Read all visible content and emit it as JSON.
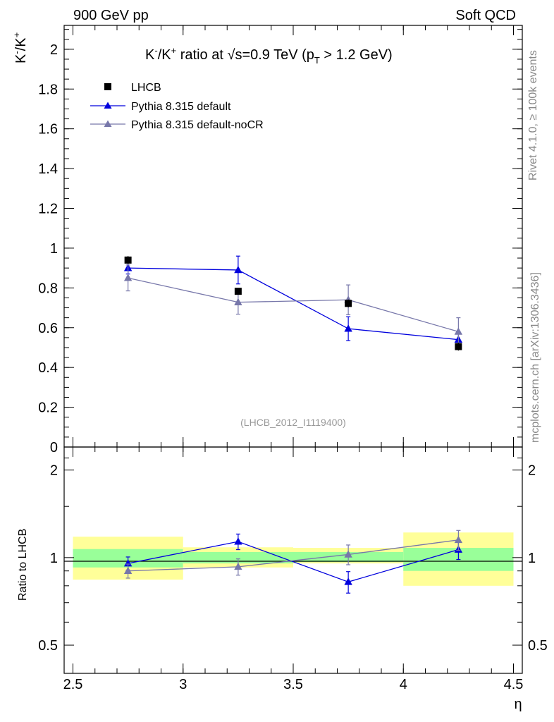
{
  "header": {
    "left": "900 GeV pp",
    "right": "Soft QCD"
  },
  "side_labels": {
    "rivet": "Rivet 4.1.0, ≥ 100k events",
    "mcplots": "mcplots.cern.ch [arXiv:1306.3436]"
  },
  "chart_data": {
    "type": "scatter",
    "title": "K⁻/K⁺ ratio at √s=0.9 TeV (p_T > 1.2 GeV)",
    "title_parts": {
      "a": "K",
      "a_sup": "-",
      "b": "/K",
      "b_sup": "+",
      "c": " ratio at ",
      "sqrt": "√",
      "d": "s=0.9 TeV (p",
      "sub": "T",
      "e": " > 1.2 GeV)"
    },
    "ylabel_parts": {
      "a": "K",
      "a_sup": "-",
      "b": "/K",
      "b_sup": "+"
    },
    "xlabel": "η",
    "ratio_ylabel": "Ratio to LHCB",
    "analysis_id": "(LHCB_2012_I1119400)",
    "xlim": [
      2.5,
      4.5
    ],
    "ylim": [
      0,
      2.12
    ],
    "ratio_ylim": [
      0.4,
      2.4
    ],
    "x_ticks": [
      "2.5",
      "3",
      "3.5",
      "4",
      "4.5"
    ],
    "y_ticks": [
      "0",
      "0.2",
      "0.4",
      "0.6",
      "0.8",
      "1",
      "1.2",
      "1.4",
      "1.6",
      "1.8",
      "2"
    ],
    "ratio_y_ticks": [
      "0.5",
      "1",
      "2"
    ],
    "bins": [
      [
        2.5,
        3.0
      ],
      [
        3.0,
        3.5
      ],
      [
        3.5,
        4.0
      ],
      [
        4.0,
        4.5
      ]
    ],
    "x": [
      2.75,
      3.25,
      3.75,
      4.25
    ],
    "series": [
      {
        "name": "LHCB",
        "color": "#000000",
        "marker": "square",
        "values": [
          0.94,
          0.783,
          0.722,
          0.505
        ],
        "err": [
          0.02,
          0.015,
          0.02,
          0.02
        ]
      },
      {
        "name": "Pythia 8.315 default",
        "color": "#0000dd",
        "marker": "triangle",
        "values": [
          0.9,
          0.89,
          0.595,
          0.54
        ],
        "err": [
          0.03,
          0.07,
          0.06,
          0.04
        ],
        "ratio": [
          0.955,
          1.135,
          0.825,
          1.065
        ],
        "ratio_err": [
          0.05,
          0.07,
          0.07,
          0.08
        ]
      },
      {
        "name": "Pythia 8.315 default-noCR",
        "color": "#7777aa",
        "marker": "triangle",
        "values": [
          0.85,
          0.728,
          0.74,
          0.58
        ],
        "err": [
          0.065,
          0.06,
          0.075,
          0.07
        ],
        "ratio": [
          0.9,
          0.93,
          1.025,
          1.15
        ],
        "ratio_err": [
          0.05,
          0.06,
          0.08,
          0.09
        ]
      }
    ],
    "ratio_bands": {
      "yellow": [
        [
          0.84,
          1.18
        ],
        [
          0.925,
          1.085
        ],
        [
          0.955,
          1.08
        ],
        [
          0.8,
          1.22
        ]
      ],
      "green": [
        [
          0.925,
          1.07
        ],
        [
          0.955,
          1.045
        ],
        [
          0.965,
          1.045
        ],
        [
          0.9,
          1.08
        ]
      ]
    }
  }
}
